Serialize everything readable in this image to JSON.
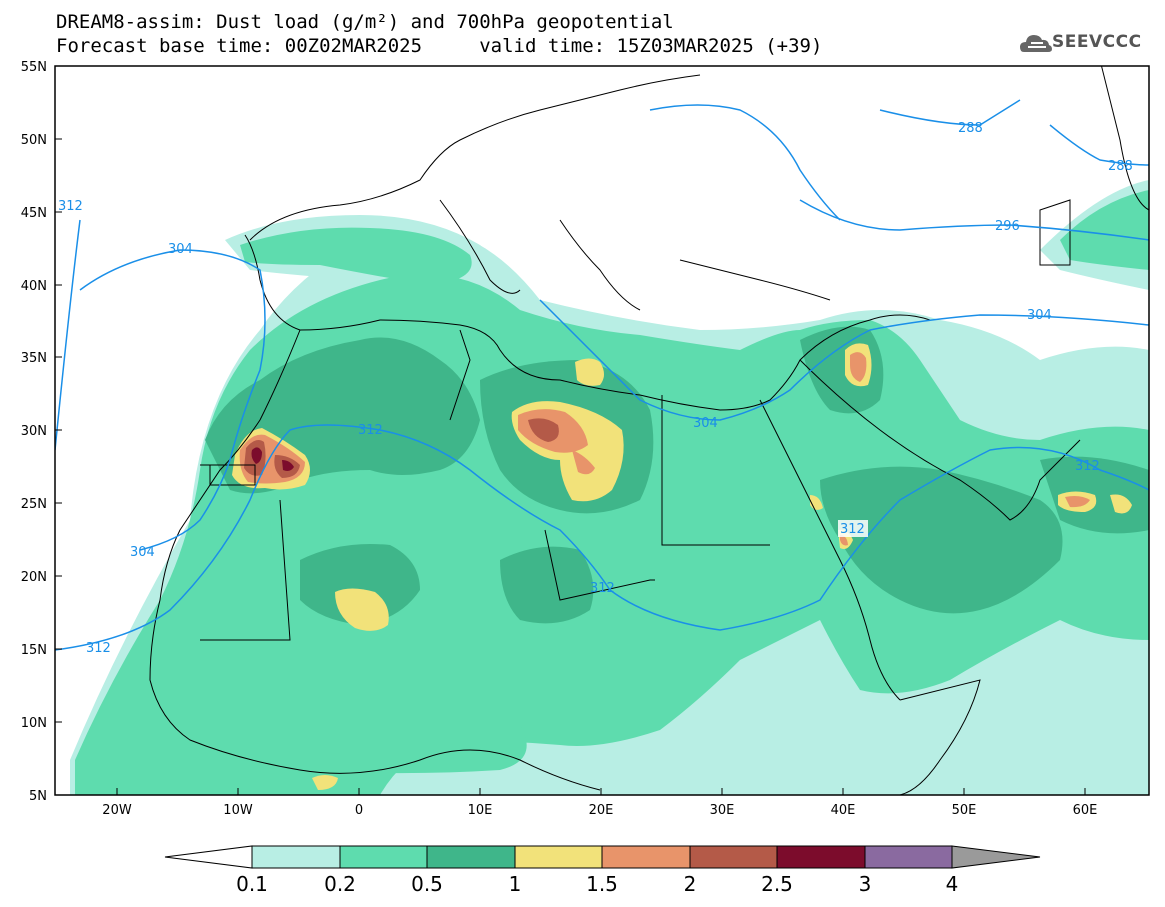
{
  "title": {
    "line1": "DREAM8-assim: Dust load (g/m²) and 700hPa geopotential",
    "line2": "Forecast base time: 00Z02MAR2025     valid time: 15Z03MAR2025 (+39)"
  },
  "logo": {
    "text": "SEEVCCC",
    "icon": "cloud-logo-icon"
  },
  "map": {
    "lat_labels": [
      "55N",
      "50N",
      "45N",
      "40N",
      "35N",
      "30N",
      "25N",
      "20N",
      "15N",
      "10N",
      "5N"
    ],
    "lon_labels": [
      "20W",
      "10W",
      "0",
      "10E",
      "20E",
      "30E",
      "40E",
      "50E",
      "60E"
    ],
    "contour_labels": [
      "288",
      "288",
      "296",
      "304",
      "304",
      "304",
      "304",
      "312",
      "312",
      "312",
      "312",
      "312"
    ]
  },
  "colorbar": {
    "labels": [
      "0.1",
      "0.2",
      "0.5",
      "1",
      "1.5",
      "2",
      "2.5",
      "3",
      "4"
    ],
    "colors": [
      "#ffffff",
      "#b8eee4",
      "#5edcae",
      "#3fb68a",
      "#f2e27a",
      "#e8946a",
      "#b45a48",
      "#7c0c2c",
      "#8a6aa0",
      "#9a9a9a"
    ]
  },
  "legend_colors": {
    "c01": "#b8eee4",
    "c02": "#5edcae",
    "c05": "#3fb68a",
    "c1": "#f2e27a",
    "c15": "#e8946a",
    "c2": "#b45a48",
    "c25": "#7c0c2c",
    "c3": "#8a6aa0",
    "contour": "#1a8fe8",
    "border": "#000000"
  }
}
